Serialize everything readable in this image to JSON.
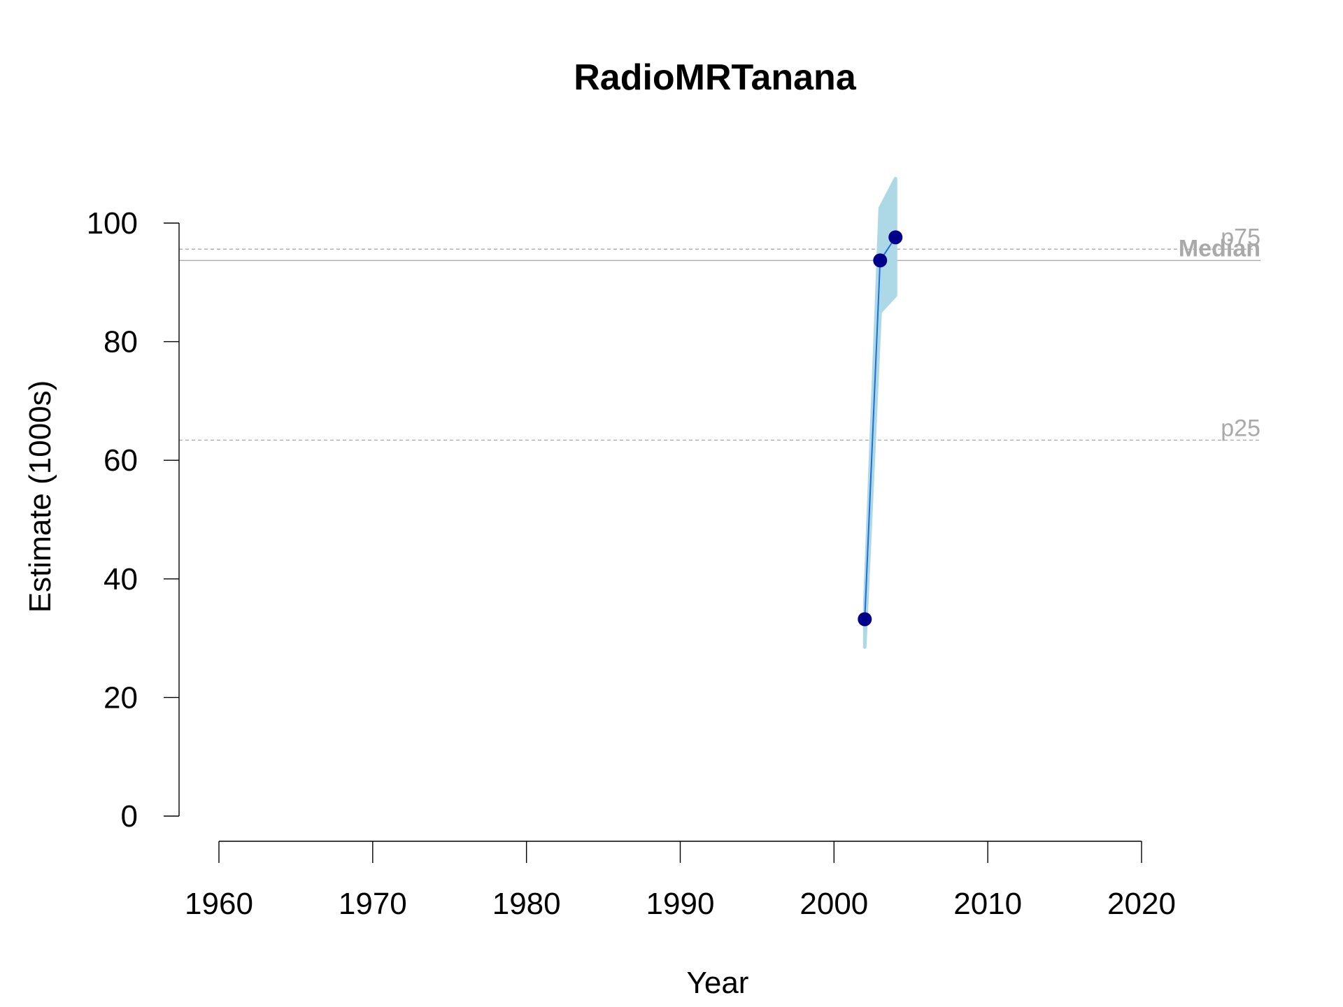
{
  "chart_data": {
    "type": "line",
    "title": "RadioMRTanana",
    "xlabel": "Year",
    "ylabel": "Estimate (1000s)",
    "xlim": [
      1957,
      2028
    ],
    "ylim": [
      0,
      100
    ],
    "x_ticks": [
      1960,
      1970,
      1980,
      1990,
      2000,
      2010,
      2020
    ],
    "y_ticks": [
      0,
      20,
      40,
      60,
      80,
      100
    ],
    "series": [
      {
        "x": [
          2002,
          2003,
          2004
        ],
        "y": [
          33.2,
          93.7,
          97.6
        ],
        "lower": [
          28.5,
          85.0,
          87.8
        ],
        "upper": [
          35.5,
          102.5,
          107.5
        ]
      }
    ],
    "reference_lines": [
      {
        "label": "p75",
        "value": 95.6,
        "style": "dashed",
        "bold": false
      },
      {
        "label": "Median",
        "value": 93.7,
        "style": "solid",
        "bold": true
      },
      {
        "label": "p25",
        "value": 63.4,
        "style": "dashed",
        "bold": false
      }
    ],
    "colors": {
      "band": "#add8e6",
      "line": "#1e6fd9",
      "points": "#00008b",
      "reference": "#a9a9a9"
    }
  }
}
